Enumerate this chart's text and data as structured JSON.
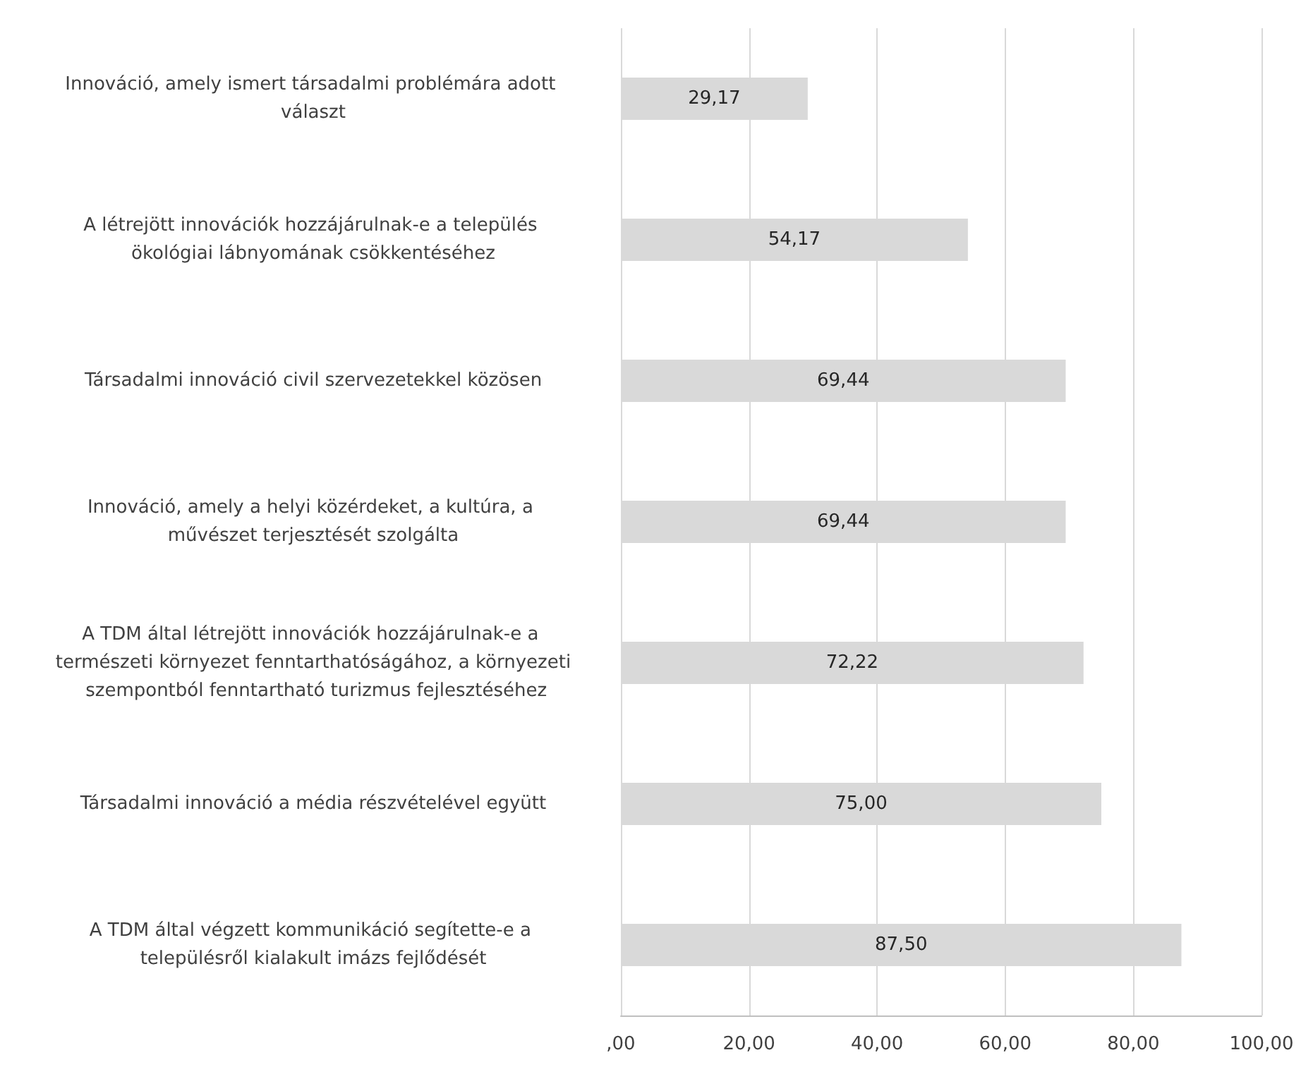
{
  "chart_data": {
    "type": "bar",
    "orientation": "horizontal",
    "categories": [
      "Innováció, amely ismert társadalmi problémára adott választ",
      "A létrejött innovációk hozzájárulnak-e a település ökológiai lábnyomának csökkentéséhez",
      "Társadalmi innováció civil szervezetekkel közösen",
      "Innováció, amely a helyi közérdeket, a kultúra, a művészet terjesztését szolgálta",
      "A TDM által létrejött innovációk hozzájárulnak-e a természeti környezet fenntarthatóságához, a környezeti szempontból fenntartható turizmus fejlesztéséhez",
      "Társadalmi innováció a média részvételével együtt",
      "A TDM által végzett kommunikáció segítette-e a településről kialakult imázs fejlődését"
    ],
    "values": [
      29.17,
      54.17,
      69.44,
      69.44,
      72.22,
      75.0,
      87.5
    ],
    "value_labels": [
      "29,17",
      "54,17",
      "69,44",
      "69,44",
      "72,22",
      "75,00",
      "87,50"
    ],
    "color": "#d9d9d9",
    "xlim": [
      0,
      100
    ],
    "xticks": [
      {
        "value": 0,
        "label": ",00"
      },
      {
        "value": 20,
        "label": "20,00"
      },
      {
        "value": 40,
        "label": "40,00"
      },
      {
        "value": 60,
        "label": "60,00"
      },
      {
        "value": 80,
        "label": "80,00"
      },
      {
        "value": 100,
        "label": "100,00"
      }
    ],
    "grid": "x"
  }
}
